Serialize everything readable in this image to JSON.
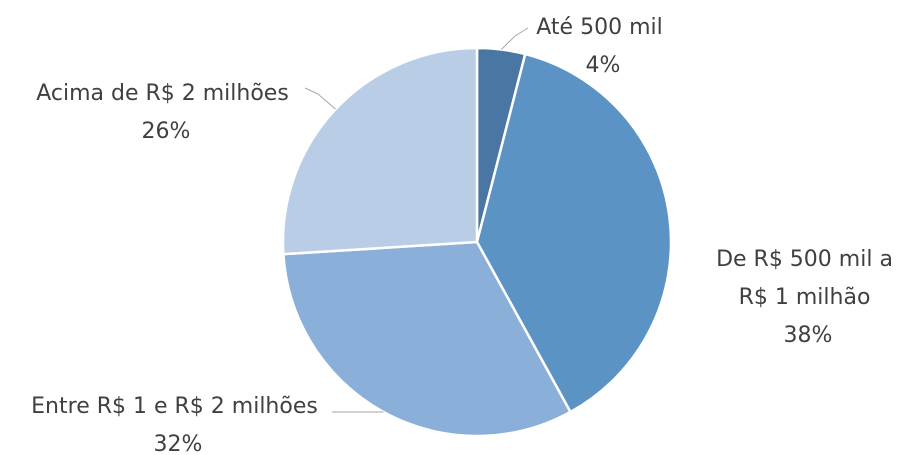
{
  "chart_data": {
    "type": "pie",
    "title": "",
    "slices": [
      {
        "label_lines": [
          "Até 500 mil"
        ],
        "percent_label": "4%",
        "value": 4,
        "color": "#4a76a4"
      },
      {
        "label_lines": [
          "De R$ 500 mil a",
          "R$ 1 milhão"
        ],
        "percent_label": "38%",
        "value": 38,
        "color": "#5b93c4"
      },
      {
        "label_lines": [
          "Entre R$ 1 e R$ 2 milhões"
        ],
        "percent_label": "32%",
        "value": 32,
        "color": "#8aafd8"
      },
      {
        "label_lines": [
          "Acima de R$ 2 milhões"
        ],
        "percent_label": "26%",
        "value": 26,
        "color": "#b9cde6"
      }
    ],
    "start_angle": "12 o'clock",
    "direction": "clockwise",
    "legend": "none",
    "leader_lines": true
  }
}
